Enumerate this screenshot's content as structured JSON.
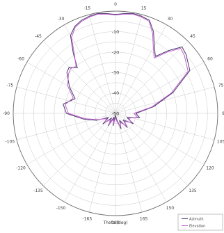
{
  "chart_data": {
    "type": "line",
    "subtype": "polar",
    "xlabel": "Theta (deg)",
    "angle_ticks": [
      0,
      15,
      30,
      45,
      60,
      75,
      90,
      105,
      120,
      135,
      150,
      165,
      180,
      -165,
      -150,
      -135,
      -120,
      -105,
      -90,
      -75,
      -60,
      -45,
      -30,
      -15
    ],
    "angle_tick_labels": [
      "0",
      "15",
      "30",
      "45",
      "60",
      "75",
      "90",
      "105",
      "120",
      "135",
      "150",
      "165",
      "180",
      "-165",
      "-150",
      "-135",
      "-120",
      "-105",
      "-90",
      "-75",
      "-60",
      "-45",
      "-30",
      "-15"
    ],
    "rlim": [
      -50,
      0
    ],
    "radial_ticks": [
      -50,
      -40,
      -30,
      -20,
      -10
    ],
    "radial_tick_labels": [
      "-50",
      "-40",
      "-30",
      "-20",
      "-10"
    ],
    "grid": true,
    "legend_position": "bottom-right",
    "colors": {
      "Azimuth": "#4a3a6a",
      "Elevation": "#c060d0"
    },
    "series": [
      {
        "name": "Azimuth",
        "theta": [
          -180,
          -170,
          -160,
          -150,
          -140,
          -130,
          -120,
          -110,
          -100,
          -90,
          -80,
          -70,
          -60,
          -50,
          -45,
          -40,
          -35,
          -30,
          -25,
          -20,
          -15,
          -10,
          -5,
          0,
          5,
          10,
          15,
          20,
          25,
          30,
          35,
          40,
          45,
          50,
          60,
          70,
          80,
          90,
          100,
          110,
          120,
          130,
          140,
          150,
          160,
          170,
          180
        ],
        "values": [
          -49,
          -44,
          -48,
          -43,
          -47,
          -42,
          -46,
          -40,
          -34,
          -26,
          -24,
          -29,
          -24,
          -19,
          -18,
          -21,
          -14,
          -6,
          -3,
          -1.5,
          -0.8,
          -0.4,
          -1.0,
          -1.6,
          -1.0,
          -0.4,
          -0.8,
          -1.5,
          -6,
          -12,
          -16,
          -10,
          -4,
          -5,
          -8,
          -20,
          -31,
          -40,
          -38,
          -44,
          -40,
          -45,
          -41,
          -46,
          -42,
          -47,
          -49
        ]
      },
      {
        "name": "Elevation",
        "theta": [
          -180,
          -170,
          -160,
          -150,
          -140,
          -130,
          -120,
          -110,
          -100,
          -90,
          -80,
          -70,
          -60,
          -50,
          -45,
          -40,
          -35,
          -30,
          -25,
          -20,
          -15,
          -10,
          -5,
          0,
          5,
          10,
          15,
          20,
          25,
          30,
          35,
          40,
          45,
          50,
          60,
          70,
          80,
          90,
          100,
          110,
          120,
          130,
          140,
          150,
          160,
          170,
          180
        ],
        "values": [
          -48,
          -45,
          -47,
          -44,
          -46,
          -43,
          -45,
          -41,
          -35,
          -27,
          -25,
          -28,
          -23,
          -20,
          -19,
          -20,
          -15,
          -7,
          -3.5,
          -2,
          -1.2,
          -0.7,
          -1.3,
          -1.9,
          -1.3,
          -0.7,
          -1.2,
          -2,
          -7,
          -13,
          -17,
          -11,
          -5,
          -6,
          -9,
          -21,
          -32,
          -41,
          -39,
          -43,
          -41,
          -44,
          -42,
          -45,
          -43,
          -46,
          -48
        ]
      }
    ]
  }
}
